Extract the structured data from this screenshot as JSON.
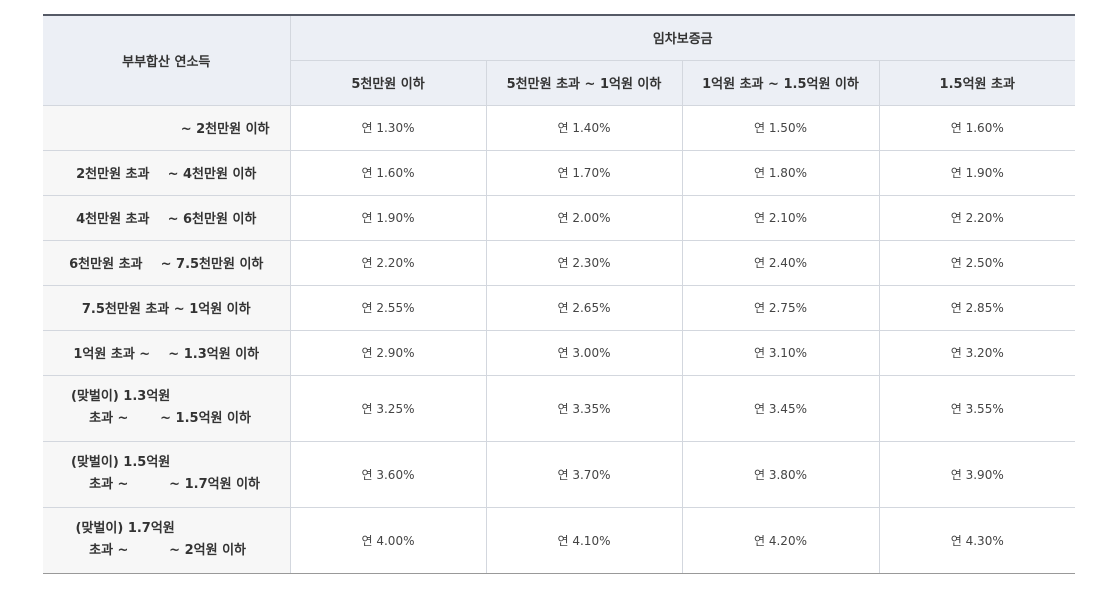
{
  "table": {
    "row_header": "부부합산 연소득",
    "group_header": "임차보증금",
    "columns": [
      "5천만원 이하",
      "5천만원 초과 ~ 1억원 이하",
      "1억원 초과 ~ 1.5억원 이하",
      "1.5억원 초과"
    ],
    "rows": [
      {
        "income": "~ 2천만원 이하",
        "rates": [
          "연 1.30%",
          "연 1.40%",
          "연 1.50%",
          "연 1.60%"
        ]
      },
      {
        "income": "2천만원 초과    ~ 4천만원 이하",
        "rates": [
          "연 1.60%",
          "연 1.70%",
          "연 1.80%",
          "연 1.90%"
        ]
      },
      {
        "income": "4천만원 초과    ~ 6천만원 이하",
        "rates": [
          "연 1.90%",
          "연 2.00%",
          "연 2.10%",
          "연 2.20%"
        ]
      },
      {
        "income": "6천만원 초과    ~ 7.5천만원 이하",
        "rates": [
          "연 2.20%",
          "연 2.30%",
          "연 2.40%",
          "연 2.50%"
        ]
      },
      {
        "income": "7.5천만원 초과 ~ 1억원 이하",
        "rates": [
          "연 2.55%",
          "연 2.65%",
          "연 2.75%",
          "연 2.85%"
        ]
      },
      {
        "income": "1억원 초과 ~    ~ 1.3억원 이하",
        "rates": [
          "연 2.90%",
          "연 3.00%",
          "연 3.10%",
          "연 3.20%"
        ]
      },
      {
        "income_line1": "(맞벌이) 1.3억원",
        "income_line2": "    초과 ~       ~ 1.5억원 이하",
        "rates": [
          "연 3.25%",
          "연 3.35%",
          "연 3.45%",
          "연 3.55%"
        ]
      },
      {
        "income_line1": "(맞벌이) 1.5억원",
        "income_line2": "    초과 ~         ~ 1.7억원 이하",
        "rates": [
          "연 3.60%",
          "연 3.70%",
          "연 3.80%",
          "연 3.90%"
        ]
      },
      {
        "income_line1": " (맞벌이) 1.7억원",
        "income_line2": "    초과 ~         ~ 2억원 이하",
        "rates": [
          "연 4.00%",
          "연 4.10%",
          "연 4.20%",
          "연 4.30%"
        ]
      }
    ]
  }
}
